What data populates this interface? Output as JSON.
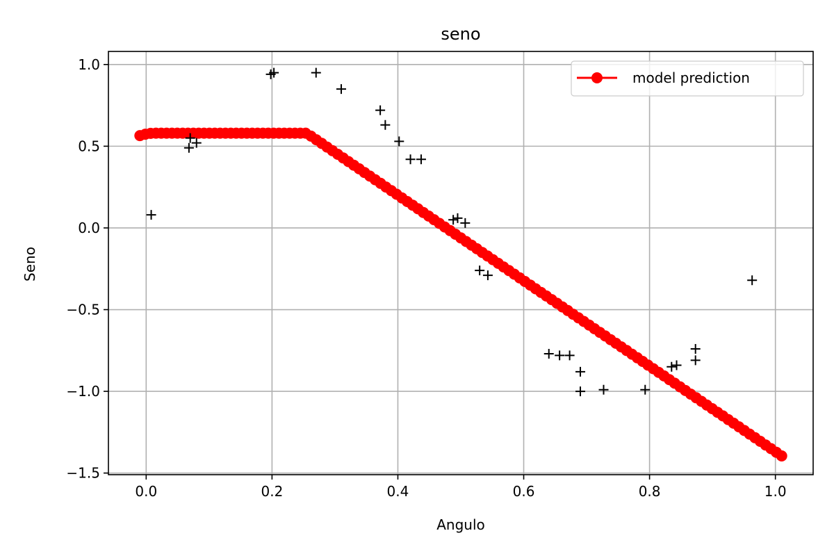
{
  "chart_data": {
    "type": "scatter",
    "title": "seno",
    "xlabel": "Angulo",
    "ylabel": "Seno",
    "xlim": [
      -0.06,
      1.06
    ],
    "ylim": [
      -1.51,
      1.08
    ],
    "xticks": [
      0.0,
      0.2,
      0.4,
      0.6,
      0.8,
      1.0
    ],
    "xtick_labels": [
      "0.0",
      "0.2",
      "0.4",
      "0.6",
      "0.8",
      "1.0"
    ],
    "yticks": [
      -1.5,
      -1.0,
      -0.5,
      0.0,
      0.5,
      1.0
    ],
    "ytick_labels": [
      "−1.5",
      "−1.0",
      "−0.5",
      "0.0",
      "0.5",
      "1.0"
    ],
    "grid": true,
    "legend_position": "top-right",
    "series": [
      {
        "name": "model prediction",
        "kind": "line-markers",
        "color": "#ff0000",
        "x_range": [
          -0.01,
          1.01
        ],
        "points": 121,
        "knots": [
          [
            -0.01,
            0.565
          ],
          [
            0.0,
            0.575
          ],
          [
            0.01,
            0.58
          ],
          [
            0.255,
            0.58
          ],
          [
            1.01,
            -1.395
          ]
        ]
      },
      {
        "kind": "markers",
        "marker": "+",
        "color": "#000000",
        "x": [
          0.008,
          0.068,
          0.07,
          0.08,
          0.198,
          0.203,
          0.27,
          0.31,
          0.372,
          0.38,
          0.402,
          0.42,
          0.437,
          0.488,
          0.495,
          0.507,
          0.53,
          0.543,
          0.64,
          0.657,
          0.673,
          0.69,
          0.69,
          0.727,
          0.793,
          0.835,
          0.843,
          0.873,
          0.873,
          0.963
        ],
        "y": [
          0.08,
          0.49,
          0.55,
          0.52,
          0.94,
          0.95,
          0.95,
          0.85,
          0.72,
          0.63,
          0.53,
          0.42,
          0.42,
          0.05,
          0.06,
          0.03,
          -0.26,
          -0.29,
          -0.77,
          -0.78,
          -0.78,
          -0.88,
          -1.0,
          -0.99,
          -0.99,
          -0.85,
          -0.84,
          -0.81,
          -0.74,
          -0.32
        ]
      }
    ]
  }
}
